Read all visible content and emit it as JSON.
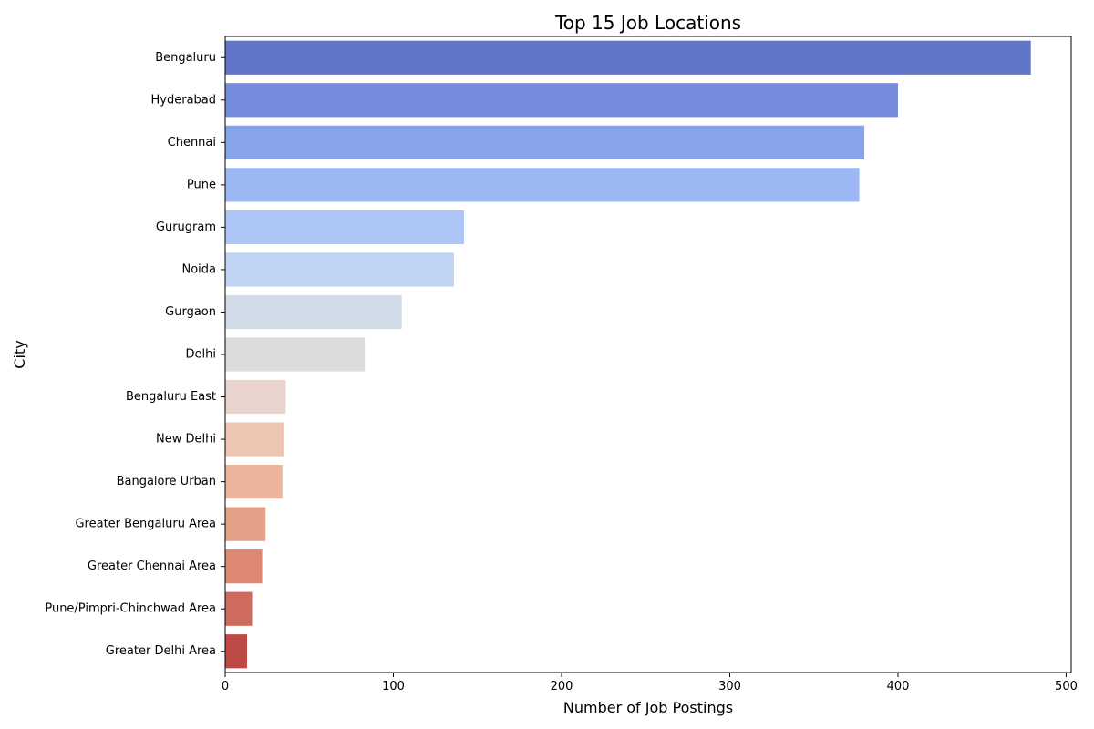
{
  "chart_data": {
    "type": "bar",
    "orientation": "horizontal",
    "title": "Top 15 Job Locations",
    "xlabel": "Number of Job Postings",
    "ylabel": "City",
    "xlim": [
      0,
      503
    ],
    "xticks": [
      "0",
      "100",
      "200",
      "300",
      "400",
      "500"
    ],
    "grid": false,
    "palette": "coolwarm",
    "categories": [
      "Bengaluru",
      "Hyderabad",
      "Chennai",
      "Pune",
      "Gurugram",
      "Noida",
      "Gurgaon",
      "Delhi",
      "Bengaluru East",
      "New Delhi",
      "Bangalore Urban",
      "Greater Bengaluru Area",
      "Greater Chennai Area",
      "Pune/Pimpri-Chinchwad Area",
      "Greater Delhi Area"
    ],
    "values": [
      479,
      400,
      380,
      377,
      142,
      136,
      105,
      83,
      36,
      35,
      34,
      24,
      22,
      16,
      13
    ],
    "colors": [
      "#6176c8",
      "#748cdb",
      "#87a3ea",
      "#9bb7f4",
      "#adc6f6",
      "#c1d3f2",
      "#d2dbe8",
      "#dcdcdc",
      "#e8d4cc",
      "#edc6b3",
      "#ecb49c",
      "#e4a087",
      "#dc8873",
      "#cf6b5e",
      "#bd4a47"
    ]
  }
}
